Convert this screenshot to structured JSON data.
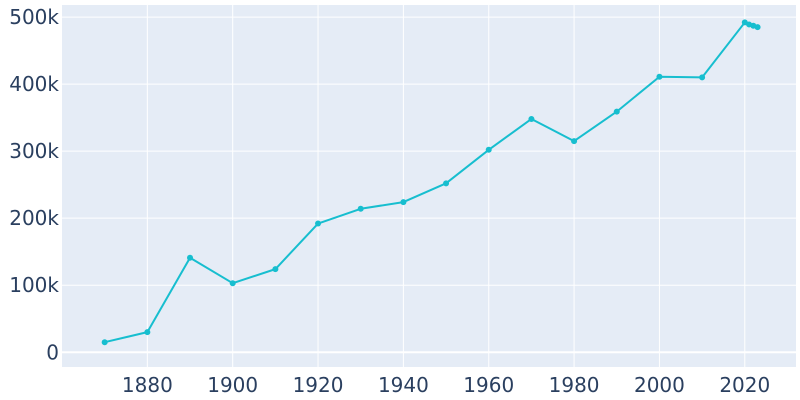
{
  "chart_data": {
    "type": "line",
    "title": "",
    "xlabel": "",
    "ylabel": "",
    "xlim": [
      1860,
      2032
    ],
    "ylim": [
      -22000,
      518000
    ],
    "x_ticks": [
      1880,
      1900,
      1920,
      1940,
      1960,
      1980,
      2000,
      2020
    ],
    "x_tick_labels": [
      "1880",
      "1900",
      "1920",
      "1940",
      "1960",
      "1980",
      "2000",
      "2020"
    ],
    "y_ticks": [
      0,
      100000,
      200000,
      300000,
      400000,
      500000
    ],
    "y_tick_labels": [
      "0",
      "100k",
      "200k",
      "300k",
      "400k",
      "500k"
    ],
    "grid": true,
    "legend": "none",
    "colors": {
      "plot_background": "#e5ecf6",
      "grid": "#ffffff",
      "line": "#17becf",
      "text": "#2a3f5f"
    },
    "series": [
      {
        "x": [
          1870,
          1880,
          1890,
          1900,
          1910,
          1920,
          1930,
          1940,
          1950,
          1960,
          1970,
          1980,
          1990,
          2000,
          2010,
          2020,
          2021,
          2022,
          2023
        ],
        "values": [
          15000,
          30000,
          141000,
          103000,
          124000,
          192000,
          214000,
          224000,
          252000,
          302000,
          348000,
          315000,
          359000,
          411000,
          410000,
          492000,
          489000,
          487000,
          485000
        ]
      }
    ]
  }
}
